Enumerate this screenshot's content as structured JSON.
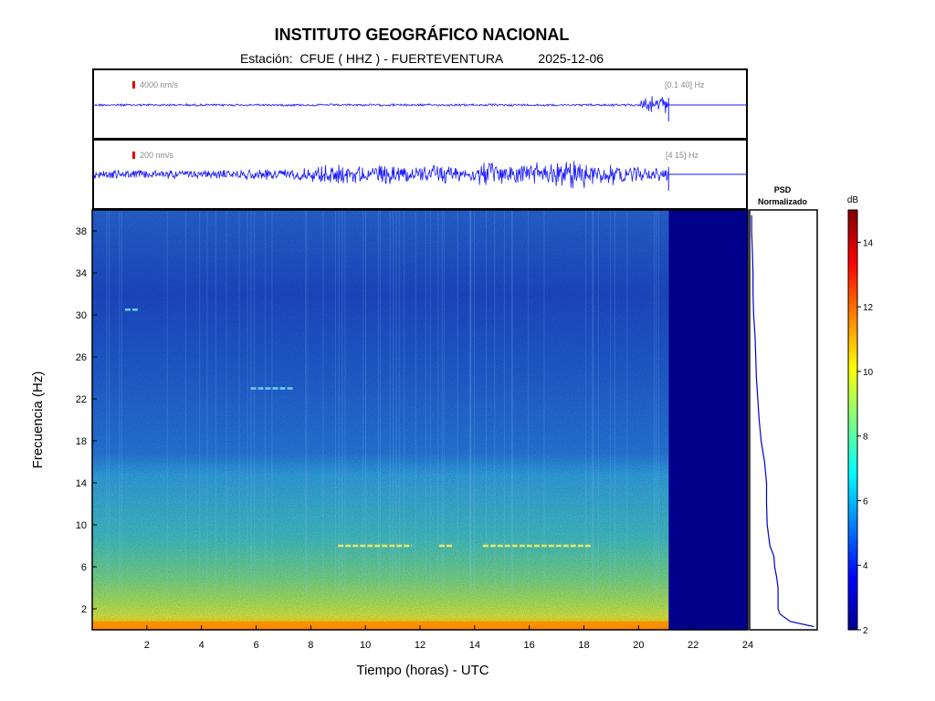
{
  "header": {
    "title": "INSTITUTO GEOGRÁFICO NACIONAL",
    "station_label": "Estación:",
    "station": "CFUE ( HHZ ) - FUERTEVENTURA",
    "date": "2025-12-06"
  },
  "colors": {
    "trace": "#1a1aff",
    "scale_mark": "#e00000",
    "nodata": "#00008b",
    "psd_line": "#0000cc"
  },
  "chart_data": [
    {
      "type": "line",
      "name": "seismogram_broadband",
      "amplitude_label": "4000 nm/s",
      "band_label": "[0.1 40] Hz",
      "x": [
        0,
        21.1
      ],
      "xlim": [
        0,
        24
      ],
      "data_end_hour": 21.1,
      "relative_amplitude": [
        0.12,
        0.12,
        0.12,
        0.12,
        0.12,
        0.12,
        0.12,
        0.12,
        0.12,
        0.12,
        0.12,
        0.12,
        0.12,
        0.12,
        0.12,
        0.12,
        0.12,
        0.12,
        0.12,
        0.12,
        0.9
      ]
    },
    {
      "type": "line",
      "name": "seismogram_filtered",
      "amplitude_label": "200 nm/s",
      "band_label": "[4 15] Hz",
      "x": [
        0,
        21.1
      ],
      "xlim": [
        0,
        24
      ],
      "data_end_hour": 21.1,
      "relative_amplitude": [
        0.25,
        0.25,
        0.25,
        0.25,
        0.25,
        0.3,
        0.3,
        0.35,
        0.55,
        0.5,
        0.55,
        0.55,
        0.6,
        0.5,
        0.65,
        0.6,
        0.7,
        0.85,
        0.6,
        0.5,
        0.4
      ]
    },
    {
      "type": "heatmap",
      "name": "spectrogram",
      "xlabel": "Tiempo (horas) - UTC",
      "ylabel": "Frecuencia  (Hz)",
      "xlim": [
        0,
        24
      ],
      "ylim": [
        0,
        40
      ],
      "xticks": [
        2,
        4,
        6,
        8,
        10,
        12,
        14,
        16,
        18,
        20,
        22,
        24
      ],
      "yticks": [
        2,
        6,
        10,
        14,
        18,
        22,
        26,
        30,
        34,
        38
      ],
      "data_end_hour": 21.1,
      "features": [
        {
          "frequency_hz": 8,
          "hours": [
            9,
            11.7
          ]
        },
        {
          "frequency_hz": 8,
          "hours": [
            12.7,
            13.2
          ]
        },
        {
          "frequency_hz": 8,
          "hours": [
            14.3,
            18.3
          ]
        },
        {
          "frequency_hz": 23,
          "hours": [
            5.8,
            7.4
          ]
        },
        {
          "frequency_hz": 30.5,
          "hours": [
            1.2,
            1.7
          ]
        }
      ]
    },
    {
      "type": "line",
      "name": "psd_normalized",
      "title_line1": "PSD",
      "title_line2": "Normalizado",
      "ylim": [
        0,
        40
      ],
      "xlim": [
        0,
        1
      ],
      "frequency": [
        0.3,
        0.8,
        1.5,
        2,
        3,
        4,
        5,
        6,
        7,
        8,
        9,
        10,
        12,
        14,
        16,
        18,
        20,
        22,
        24,
        26,
        28,
        30,
        32,
        34,
        36,
        38,
        39.5
      ],
      "value": [
        0.95,
        0.6,
        0.45,
        0.42,
        0.42,
        0.42,
        0.4,
        0.37,
        0.36,
        0.3,
        0.28,
        0.26,
        0.25,
        0.25,
        0.22,
        0.17,
        0.14,
        0.12,
        0.1,
        0.09,
        0.08,
        0.06,
        0.05,
        0.05,
        0.04,
        0.03,
        0.03
      ]
    },
    {
      "type": "heatmap",
      "name": "colorbar",
      "label": "dB",
      "range": [
        2,
        15
      ],
      "ticks": [
        2,
        4,
        6,
        8,
        10,
        12,
        14
      ]
    }
  ]
}
